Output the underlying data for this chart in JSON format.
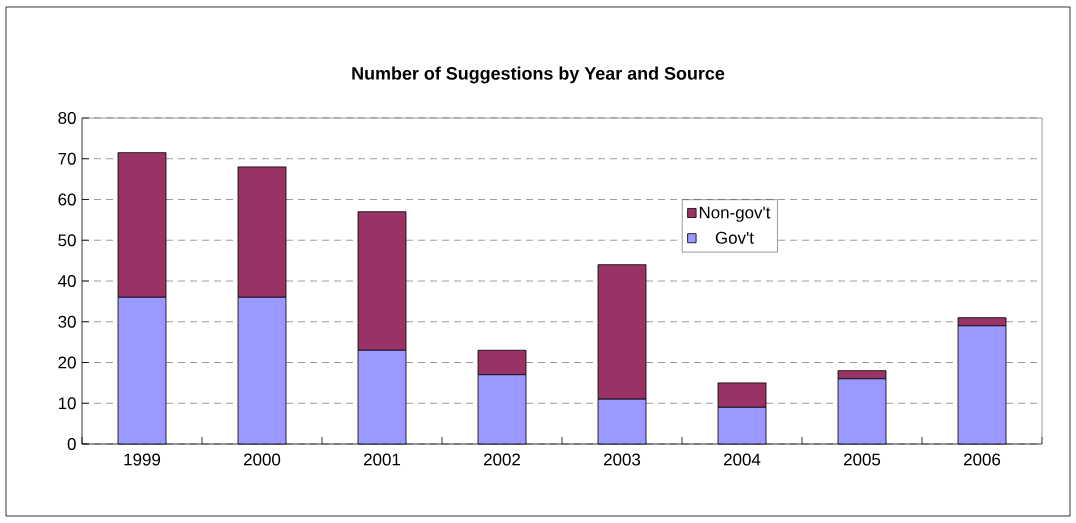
{
  "chart_data": {
    "type": "bar",
    "title": "Number of Suggestions by Year and Source",
    "categories": [
      "1999",
      "2000",
      "2001",
      "2002",
      "2003",
      "2004",
      "2005",
      "2006"
    ],
    "stacked": true,
    "series": [
      {
        "name": "Gov't",
        "color": "#9999ff",
        "values": [
          36,
          36,
          23,
          17,
          11,
          9,
          16,
          29
        ]
      },
      {
        "name": "Non-gov't",
        "color": "#993366",
        "values": [
          35.5,
          32,
          34,
          6,
          33,
          6,
          2,
          2
        ]
      }
    ],
    "ylim": [
      0,
      80
    ],
    "yticks": [
      0,
      10,
      20,
      30,
      40,
      50,
      60,
      70,
      80
    ],
    "grid": "y",
    "legend": "right"
  }
}
